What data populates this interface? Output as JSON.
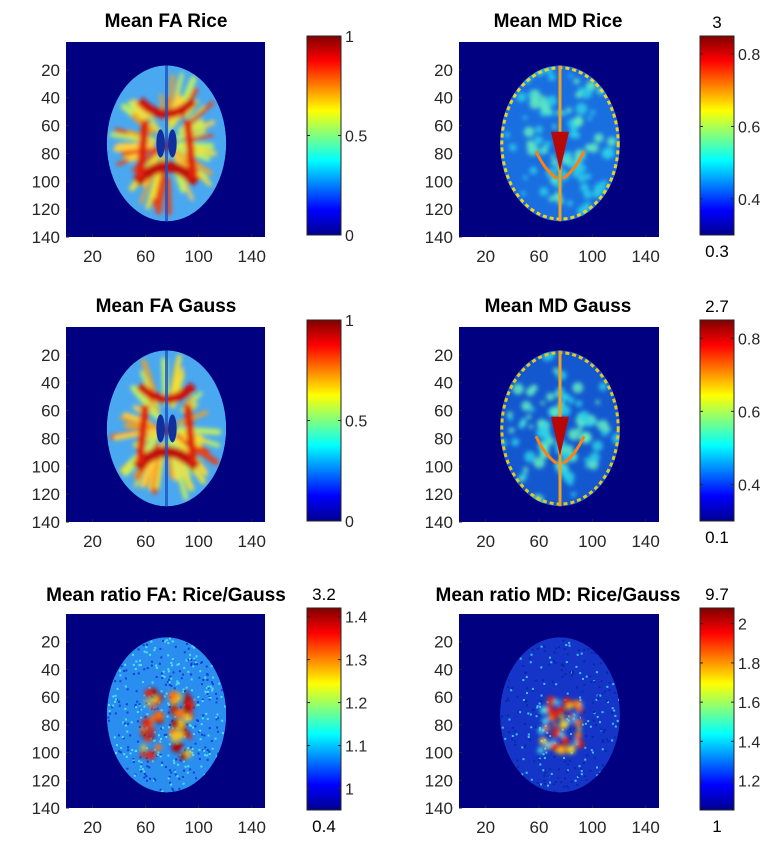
{
  "colors": {
    "background": "#000080",
    "colormap": "jet"
  },
  "panels": [
    {
      "title": "Mean FA Rice",
      "x_ticks": [
        "20",
        "60",
        "100",
        "140"
      ],
      "y_ticks": [
        "20",
        "40",
        "60",
        "80",
        "100",
        "120",
        "140"
      ],
      "colorbar": {
        "range": [
          0,
          1
        ],
        "ticks": [
          "0",
          "0.5",
          "1"
        ],
        "top_label": "",
        "bottom_label": ""
      },
      "pattern": "fa"
    },
    {
      "title": "Mean MD Rice",
      "x_ticks": [
        "20",
        "60",
        "100",
        "140"
      ],
      "y_ticks": [
        "20",
        "40",
        "60",
        "80",
        "100",
        "120",
        "140"
      ],
      "colorbar": {
        "range": [
          0.3,
          0.85
        ],
        "ticks": [
          "0.4",
          "0.6",
          "0.8"
        ],
        "top_label": "3",
        "bottom_label": "0.3"
      },
      "pattern": "md"
    },
    {
      "title": "Mean FA Gauss",
      "x_ticks": [
        "20",
        "60",
        "100",
        "140"
      ],
      "y_ticks": [
        "20",
        "40",
        "60",
        "80",
        "100",
        "120",
        "140"
      ],
      "colorbar": {
        "range": [
          0,
          1
        ],
        "ticks": [
          "0",
          "0.5",
          "1"
        ],
        "top_label": "",
        "bottom_label": ""
      },
      "pattern": "fa"
    },
    {
      "title": "Mean MD Gauss",
      "x_ticks": [
        "20",
        "60",
        "100",
        "140"
      ],
      "y_ticks": [
        "20",
        "40",
        "60",
        "80",
        "100",
        "120",
        "140"
      ],
      "colorbar": {
        "range": [
          0.3,
          0.85
        ],
        "ticks": [
          "0.4",
          "0.6",
          "0.8"
        ],
        "top_label": "2.7",
        "bottom_label": "0.1"
      },
      "pattern": "mdg"
    },
    {
      "title": "Mean ratio FA: Rice/Gauss",
      "x_ticks": [
        "20",
        "60",
        "100",
        "140"
      ],
      "y_ticks": [
        "20",
        "40",
        "60",
        "80",
        "100",
        "120",
        "140"
      ],
      "colorbar": {
        "range": [
          0.95,
          1.42
        ],
        "ticks": [
          "1",
          "1.1",
          "1.2",
          "1.3",
          "1.4"
        ],
        "top_label": "3.2",
        "bottom_label": "0.4"
      },
      "pattern": "rfa"
    },
    {
      "title": "Mean ratio MD: Rice/Gauss",
      "x_ticks": [
        "20",
        "60",
        "100",
        "140"
      ],
      "y_ticks": [
        "20",
        "40",
        "60",
        "80",
        "100",
        "120",
        "140"
      ],
      "colorbar": {
        "range": [
          1.05,
          2.08
        ],
        "ticks": [
          "1.2",
          "1.4",
          "1.6",
          "1.8",
          "2"
        ],
        "top_label": "9.7",
        "bottom_label": "1"
      },
      "pattern": "rmd"
    }
  ],
  "chart_data": [
    {
      "type": "heatmap",
      "title": "Mean FA Rice",
      "x_ticks": [
        20,
        60,
        100,
        140
      ],
      "y_ticks": [
        20,
        40,
        60,
        80,
        100,
        120,
        140
      ],
      "xlim": [
        0,
        150
      ],
      "ylim": [
        0,
        140
      ],
      "colorbar_ticks": [
        0,
        0.5,
        1
      ],
      "colorbar_range": [
        0,
        1
      ],
      "colormap": "jet"
    },
    {
      "type": "heatmap",
      "title": "Mean MD Rice",
      "x_ticks": [
        20,
        60,
        100,
        140
      ],
      "y_ticks": [
        20,
        40,
        60,
        80,
        100,
        120,
        140
      ],
      "xlim": [
        0,
        150
      ],
      "ylim": [
        0,
        140
      ],
      "colorbar_ticks": [
        0.4,
        0.6,
        0.8
      ],
      "colorbar_range": [
        0.3,
        0.85
      ],
      "colorbar_extremes": {
        "max": 3,
        "min": 0.3
      },
      "colormap": "jet"
    },
    {
      "type": "heatmap",
      "title": "Mean FA Gauss",
      "x_ticks": [
        20,
        60,
        100,
        140
      ],
      "y_ticks": [
        20,
        40,
        60,
        80,
        100,
        120,
        140
      ],
      "xlim": [
        0,
        150
      ],
      "ylim": [
        0,
        140
      ],
      "colorbar_ticks": [
        0,
        0.5,
        1
      ],
      "colorbar_range": [
        0,
        1
      ],
      "colormap": "jet"
    },
    {
      "type": "heatmap",
      "title": "Mean MD Gauss",
      "x_ticks": [
        20,
        60,
        100,
        140
      ],
      "y_ticks": [
        20,
        40,
        60,
        80,
        100,
        120,
        140
      ],
      "xlim": [
        0,
        150
      ],
      "ylim": [
        0,
        140
      ],
      "colorbar_ticks": [
        0.4,
        0.6,
        0.8
      ],
      "colorbar_range": [
        0.3,
        0.85
      ],
      "colorbar_extremes": {
        "max": 2.7,
        "min": 0.1
      },
      "colormap": "jet"
    },
    {
      "type": "heatmap",
      "title": "Mean ratio FA: Rice/Gauss",
      "x_ticks": [
        20,
        60,
        100,
        140
      ],
      "y_ticks": [
        20,
        40,
        60,
        80,
        100,
        120,
        140
      ],
      "xlim": [
        0,
        150
      ],
      "ylim": [
        0,
        140
      ],
      "colorbar_ticks": [
        1,
        1.1,
        1.2,
        1.3,
        1.4
      ],
      "colorbar_range": [
        0.95,
        1.42
      ],
      "colorbar_extremes": {
        "max": 3.2,
        "min": 0.4
      },
      "colormap": "jet"
    },
    {
      "type": "heatmap",
      "title": "Mean ratio MD: Rice/Gauss",
      "x_ticks": [
        20,
        60,
        100,
        140
      ],
      "y_ticks": [
        20,
        40,
        60,
        80,
        100,
        120,
        140
      ],
      "xlim": [
        0,
        150
      ],
      "ylim": [
        0,
        140
      ],
      "colorbar_ticks": [
        1.2,
        1.4,
        1.6,
        1.8,
        2
      ],
      "colorbar_range": [
        1.05,
        2.08
      ],
      "colorbar_extremes": {
        "max": 9.7,
        "min": 1
      },
      "colormap": "jet"
    }
  ]
}
